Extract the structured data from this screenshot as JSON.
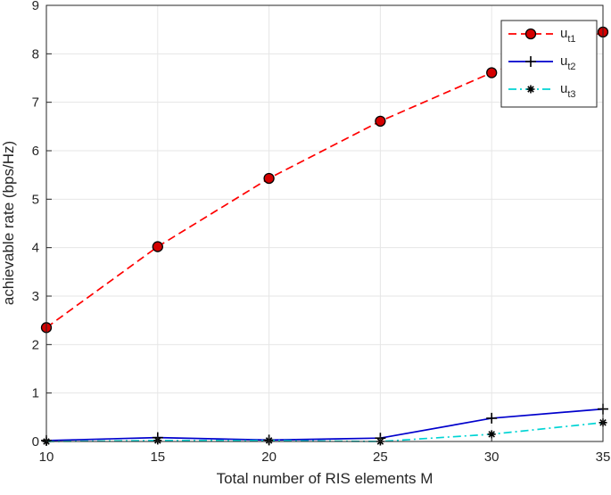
{
  "chart_data": {
    "type": "line",
    "title": "",
    "xlabel": "Total number of RIS elements M",
    "ylabel": "achievable rate (bps/Hz)",
    "x": [
      10,
      15,
      20,
      25,
      30,
      35
    ],
    "xlim": [
      10,
      35
    ],
    "ylim": [
      0,
      9
    ],
    "xticks": [
      "10",
      "15",
      "20",
      "25",
      "30",
      "35"
    ],
    "yticks": [
      "0",
      "1",
      "2",
      "3",
      "4",
      "5",
      "6",
      "7",
      "8",
      "9"
    ],
    "grid": true,
    "legend_position": "top-right",
    "series": [
      {
        "name": "u",
        "name_sub": "t1",
        "values": [
          2.35,
          4.02,
          5.43,
          6.61,
          7.61,
          8.45
        ],
        "color": "#ff0000",
        "line_style": "dashed",
        "marker": "circle",
        "marker_fill": "#d40000"
      },
      {
        "name": "u",
        "name_sub": "t2",
        "values": [
          0.02,
          0.08,
          0.03,
          0.07,
          0.48,
          0.67
        ],
        "color": "#0000cc",
        "line_style": "solid",
        "marker": "plus",
        "marker_fill": "#000000"
      },
      {
        "name": "u",
        "name_sub": "t3",
        "values": [
          0.0,
          0.02,
          0.02,
          0.0,
          0.15,
          0.39
        ],
        "color": "#00d4d4",
        "line_style": "dashdot",
        "marker": "asterisk",
        "marker_fill": "#000000"
      }
    ]
  }
}
